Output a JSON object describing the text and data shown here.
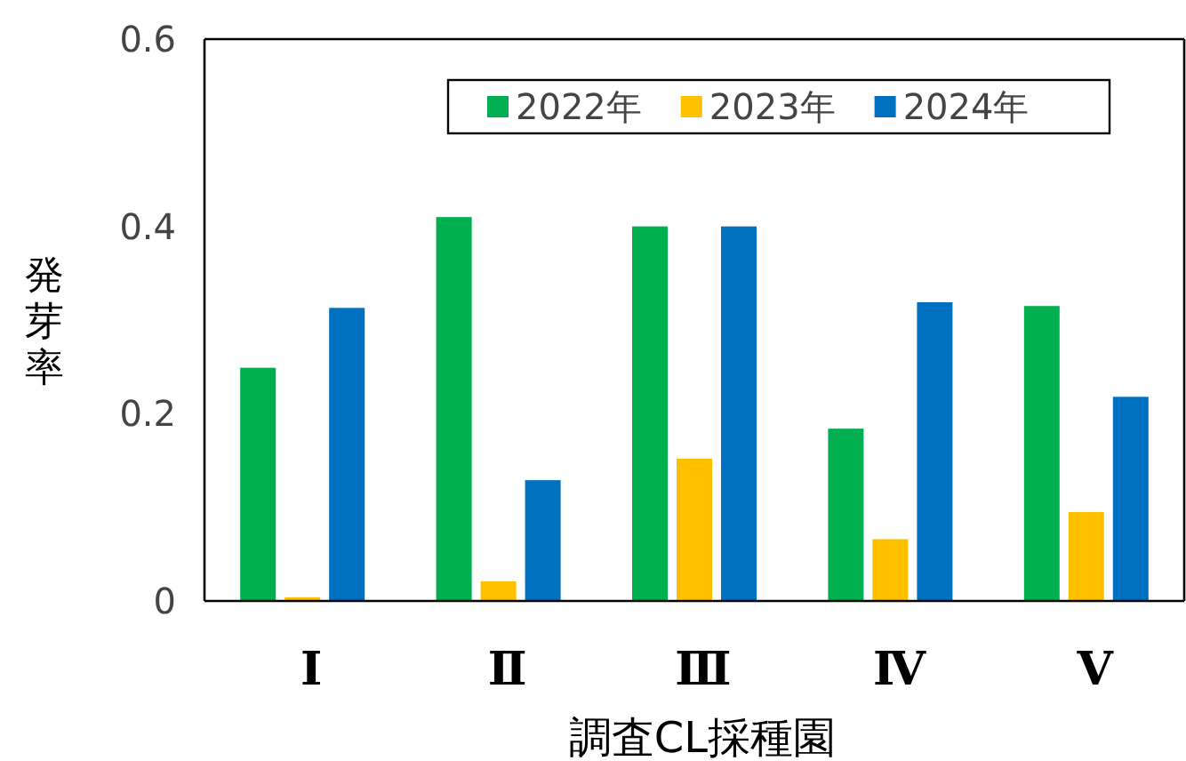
{
  "chart_data": {
    "type": "bar",
    "xlabel": "調査CL採種園",
    "ylabel": "発芽率",
    "categories": [
      "Ⅰ",
      "Ⅱ",
      "Ⅲ",
      "Ⅳ",
      "Ⅴ"
    ],
    "series": [
      {
        "name": "2022年",
        "color": "#00b050",
        "values": [
          0.249,
          0.41,
          0.4,
          0.184,
          0.315
        ]
      },
      {
        "name": "2023年",
        "color": "#ffc000",
        "values": [
          0.004,
          0.021,
          0.152,
          0.066,
          0.095
        ]
      },
      {
        "name": "2024年",
        "color": "#0070c0",
        "values": [
          0.313,
          0.129,
          0.4,
          0.319,
          0.218
        ]
      }
    ],
    "ylim": [
      0,
      0.6
    ],
    "yticks": [
      0,
      0.2,
      0.4,
      0.6
    ],
    "legend": "top right",
    "grid": false
  }
}
